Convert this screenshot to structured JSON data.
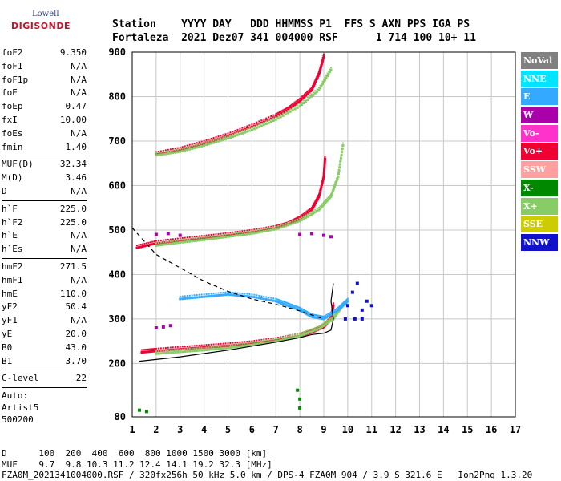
{
  "logo": {
    "line1": "Lowell",
    "line2": "DIGISONDE"
  },
  "header": {
    "line1": "Station    YYYY DAY   DDD HHMMSS P1  FFS S AXN PPS IGA PS",
    "line2": "Fortaleza  2021 Dez07 341 004000 RSF      1 714 100 10+ 11"
  },
  "params": {
    "group1": [
      {
        "k": "foF2",
        "v": "9.350"
      },
      {
        "k": "foF1",
        "v": "N/A"
      },
      {
        "k": "foF1p",
        "v": "N/A"
      },
      {
        "k": "foE",
        "v": "N/A"
      },
      {
        "k": "foEp",
        "v": "0.47"
      },
      {
        "k": "fxI",
        "v": "10.00"
      },
      {
        "k": "foEs",
        "v": "N/A"
      },
      {
        "k": "fmin",
        "v": "1.40"
      }
    ],
    "group2": [
      {
        "k": "MUF(D)",
        "v": "32.34"
      },
      {
        "k": "M(D)",
        "v": "3.46"
      },
      {
        "k": "D",
        "v": "N/A"
      }
    ],
    "group3": [
      {
        "k": "h`F",
        "v": "225.0"
      },
      {
        "k": "h`F2",
        "v": "225.0"
      },
      {
        "k": "h`E",
        "v": "N/A"
      },
      {
        "k": "h`Es",
        "v": "N/A"
      }
    ],
    "group4": [
      {
        "k": "hmF2",
        "v": "271.5"
      },
      {
        "k": "hmF1",
        "v": "N/A"
      },
      {
        "k": "hmE",
        "v": "110.0"
      },
      {
        "k": "yF2",
        "v": "50.4"
      },
      {
        "k": "yF1",
        "v": "N/A"
      },
      {
        "k": "yE",
        "v": "20.0"
      },
      {
        "k": "B0",
        "v": "43.0"
      },
      {
        "k": "B1",
        "v": "3.70"
      }
    ],
    "clevel": {
      "k": "C-level",
      "v": "22"
    },
    "auto": [
      "Auto:",
      "Artist5",
      "500200"
    ]
  },
  "legend": [
    {
      "label": "NoVal",
      "color": "#808080"
    },
    {
      "label": "NNE",
      "color": "#00e5ff"
    },
    {
      "label": "E",
      "color": "#33aaff"
    },
    {
      "label": "W",
      "color": "#aa00aa"
    },
    {
      "label": "Vo-",
      "color": "#ff33cc"
    },
    {
      "label": "Vo+",
      "color": "#ee0033"
    },
    {
      "label": "SSW",
      "color": "#ff9f9f"
    },
    {
      "label": "X-",
      "color": "#008800"
    },
    {
      "label": "X+",
      "color": "#88cc66"
    },
    {
      "label": "SSE",
      "color": "#cccc00"
    },
    {
      "label": "NNW",
      "color": "#1111cc"
    }
  ],
  "footer": {
    "line1": "D      100  200  400  600  800 1000 1500 3000 [km]",
    "line2": "MUF    9.7  9.8 10.3 11.2 12.4 14.1 19.2 32.3 [MHz]",
    "line3": "FZA0M_2021341004000.RSF / 320fx256h 50 kHz 5.0 km / DPS-4 FZA0M 904 / 3.9 S 321.6 E   Ion2Png 1.3.20"
  },
  "chart_data": {
    "type": "scatter",
    "xlabel": "",
    "ylabel": "",
    "xlim": [
      1,
      17
    ],
    "ylim": [
      80,
      900
    ],
    "xticks": [
      1,
      2,
      3,
      4,
      5,
      6,
      7,
      8,
      9,
      10,
      11,
      12,
      13,
      14,
      15,
      16,
      17
    ],
    "yticks": [
      80,
      200,
      300,
      400,
      500,
      600,
      700,
      800,
      900
    ],
    "grid": true,
    "series": [
      {
        "name": "Vo+",
        "color": "#ee0033",
        "points": [
          [
            1.4,
            225
          ],
          [
            2,
            228
          ],
          [
            3,
            232
          ],
          [
            4,
            236
          ],
          [
            5,
            240
          ],
          [
            6,
            245
          ],
          [
            7,
            252
          ],
          [
            8,
            262
          ],
          [
            8.5,
            270
          ],
          [
            9,
            282
          ],
          [
            9.3,
            300
          ],
          [
            9.4,
            330
          ]
        ]
      },
      {
        "name": "X+",
        "color": "#88cc66",
        "points": [
          [
            2,
            222
          ],
          [
            3,
            226
          ],
          [
            4,
            230
          ],
          [
            5,
            235
          ],
          [
            6,
            242
          ],
          [
            7,
            250
          ],
          [
            8,
            262
          ],
          [
            8.8,
            278
          ],
          [
            9.4,
            300
          ],
          [
            9.8,
            330
          ]
        ]
      },
      {
        "name": "Vo+",
        "color": "#ee0033",
        "points": [
          [
            1.2,
            460
          ],
          [
            2,
            470
          ],
          [
            3,
            476
          ],
          [
            4,
            482
          ],
          [
            5,
            488
          ],
          [
            6,
            495
          ],
          [
            7,
            504
          ],
          [
            7.5,
            512
          ],
          [
            8,
            525
          ],
          [
            8.5,
            545
          ],
          [
            8.8,
            575
          ],
          [
            9.0,
            620
          ],
          [
            9.05,
            660
          ]
        ]
      },
      {
        "name": "X+",
        "color": "#88cc66",
        "points": [
          [
            2,
            465
          ],
          [
            3,
            472
          ],
          [
            4,
            478
          ],
          [
            5,
            485
          ],
          [
            6,
            492
          ],
          [
            7,
            502
          ],
          [
            8,
            520
          ],
          [
            8.8,
            545
          ],
          [
            9.3,
            575
          ],
          [
            9.6,
            620
          ],
          [
            9.8,
            690
          ]
        ]
      },
      {
        "name": "Vo+",
        "color": "#ee0033",
        "points": [
          [
            2,
            670
          ],
          [
            3,
            680
          ],
          [
            4,
            695
          ],
          [
            5,
            712
          ],
          [
            6,
            732
          ],
          [
            7,
            755
          ],
          [
            7.5,
            770
          ],
          [
            8,
            790
          ],
          [
            8.5,
            815
          ],
          [
            8.8,
            850
          ],
          [
            9.0,
            890
          ]
        ]
      },
      {
        "name": "X+",
        "color": "#88cc66",
        "points": [
          [
            2,
            668
          ],
          [
            3,
            676
          ],
          [
            4,
            690
          ],
          [
            5,
            706
          ],
          [
            6,
            725
          ],
          [
            7,
            748
          ],
          [
            8,
            778
          ],
          [
            8.8,
            815
          ],
          [
            9.3,
            860
          ]
        ]
      },
      {
        "name": "E",
        "color": "#33aaff",
        "points": [
          [
            3,
            345
          ],
          [
            4,
            350
          ],
          [
            5,
            355
          ],
          [
            6,
            350
          ],
          [
            7,
            340
          ],
          [
            7.5,
            330
          ],
          [
            8,
            320
          ],
          [
            8.5,
            305
          ],
          [
            9,
            300
          ],
          [
            9.6,
            320
          ],
          [
            10,
            340
          ]
        ]
      },
      {
        "name": "NNW",
        "color": "#1111cc",
        "points": [
          [
            9.9,
            300
          ],
          [
            10,
            330
          ],
          [
            10.2,
            360
          ],
          [
            10.4,
            380
          ],
          [
            10.6,
            320
          ],
          [
            10.8,
            340
          ],
          [
            11,
            330
          ],
          [
            10.3,
            300
          ],
          [
            10.6,
            300
          ]
        ]
      },
      {
        "name": "W",
        "color": "#aa00aa",
        "points": [
          [
            2,
            280
          ],
          [
            2.3,
            282
          ],
          [
            2.6,
            285
          ],
          [
            2,
            490
          ],
          [
            2.5,
            492
          ],
          [
            3,
            488
          ],
          [
            8,
            490
          ],
          [
            8.5,
            492
          ],
          [
            9,
            488
          ],
          [
            9.3,
            485
          ]
        ]
      },
      {
        "name": "X-",
        "color": "#008800",
        "points": [
          [
            1.3,
            95
          ],
          [
            1.6,
            92
          ],
          [
            8,
            100
          ],
          [
            8.0,
            120
          ],
          [
            7.9,
            140
          ]
        ]
      }
    ],
    "curves": [
      {
        "name": "profile",
        "style": "solid",
        "points": [
          [
            1.3,
            205
          ],
          [
            3,
            215
          ],
          [
            5,
            230
          ],
          [
            7,
            248
          ],
          [
            8,
            258
          ],
          [
            8.5,
            265
          ],
          [
            9,
            268
          ],
          [
            9.3,
            275
          ],
          [
            9.4,
            300
          ],
          [
            9.3,
            340
          ],
          [
            9.4,
            380
          ]
        ]
      },
      {
        "name": "muf-curve",
        "style": "dashed",
        "points": [
          [
            1,
            505
          ],
          [
            1.5,
            475
          ],
          [
            2,
            445
          ],
          [
            3,
            415
          ],
          [
            4,
            385
          ],
          [
            5,
            362
          ],
          [
            6,
            345
          ],
          [
            7,
            333
          ],
          [
            8,
            318
          ],
          [
            9,
            300
          ]
        ]
      }
    ]
  }
}
